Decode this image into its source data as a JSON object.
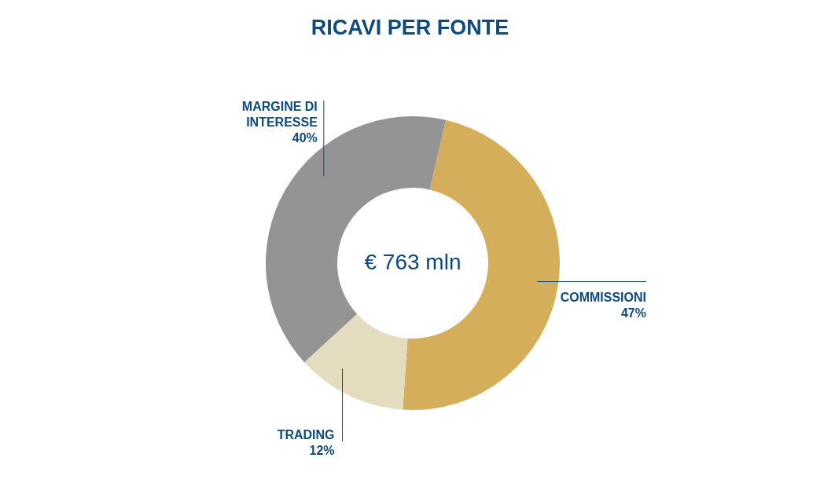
{
  "chart_data": {
    "type": "donut",
    "title": "RICAVI PER FONTE",
    "categories": [
      "COMMISSIONI",
      "TRADING",
      "MARGINE DI INTERESSE"
    ],
    "values": [
      47,
      12,
      40
    ],
    "colors": [
      "#d5ae5c",
      "#e3dcbf",
      "#949494"
    ],
    "value_labels": [
      "47%",
      "12%",
      "40%"
    ],
    "annotations": [
      "€ 763 mln"
    ]
  }
}
